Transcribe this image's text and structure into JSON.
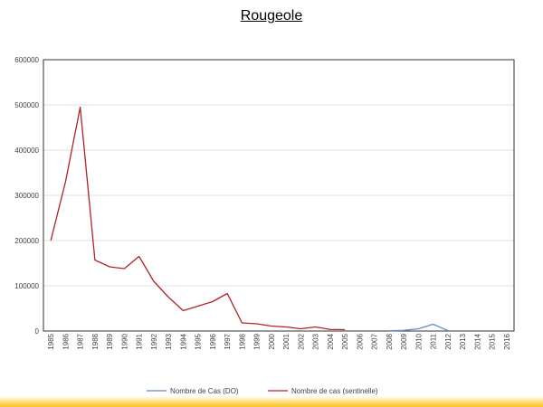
{
  "chart_data": {
    "type": "line",
    "title": "Rougeole",
    "xlabel": "",
    "ylabel": "",
    "ylim": [
      0,
      600000
    ],
    "yticks": [
      0,
      100000,
      200000,
      300000,
      400000,
      500000,
      600000
    ],
    "grid": true,
    "legend_position": "bottom",
    "categories": [
      "1985",
      "1986",
      "1987",
      "1988",
      "1989",
      "1990",
      "1991",
      "1992",
      "1993",
      "1994",
      "1995",
      "1996",
      "1997",
      "1998",
      "1999",
      "2000",
      "2001",
      "2002",
      "2003",
      "2004",
      "2005",
      "2006",
      "2007",
      "2008",
      "2009",
      "2010",
      "2011",
      "2012",
      "2013",
      "2014",
      "2015",
      "2016"
    ],
    "series": [
      {
        "name": "Nombre de Cas (DO)",
        "color": "#5b8fc7",
        "values": [
          null,
          null,
          null,
          null,
          null,
          null,
          null,
          null,
          null,
          null,
          null,
          null,
          null,
          null,
          null,
          null,
          null,
          null,
          null,
          null,
          null,
          null,
          null,
          600,
          1500,
          5000,
          15000,
          900,
          null,
          null,
          null,
          null
        ]
      },
      {
        "name": "Nombre de cas (sentinelle)",
        "color": "#b22226",
        "values": [
          200000,
          330000,
          495000,
          157000,
          142000,
          138000,
          165000,
          110000,
          75000,
          45000,
          55000,
          65000,
          83000,
          18000,
          16000,
          11000,
          9000,
          5000,
          9000,
          3500,
          3000,
          null,
          null,
          null,
          null,
          null,
          null,
          null,
          null,
          null,
          null,
          null
        ]
      }
    ]
  }
}
